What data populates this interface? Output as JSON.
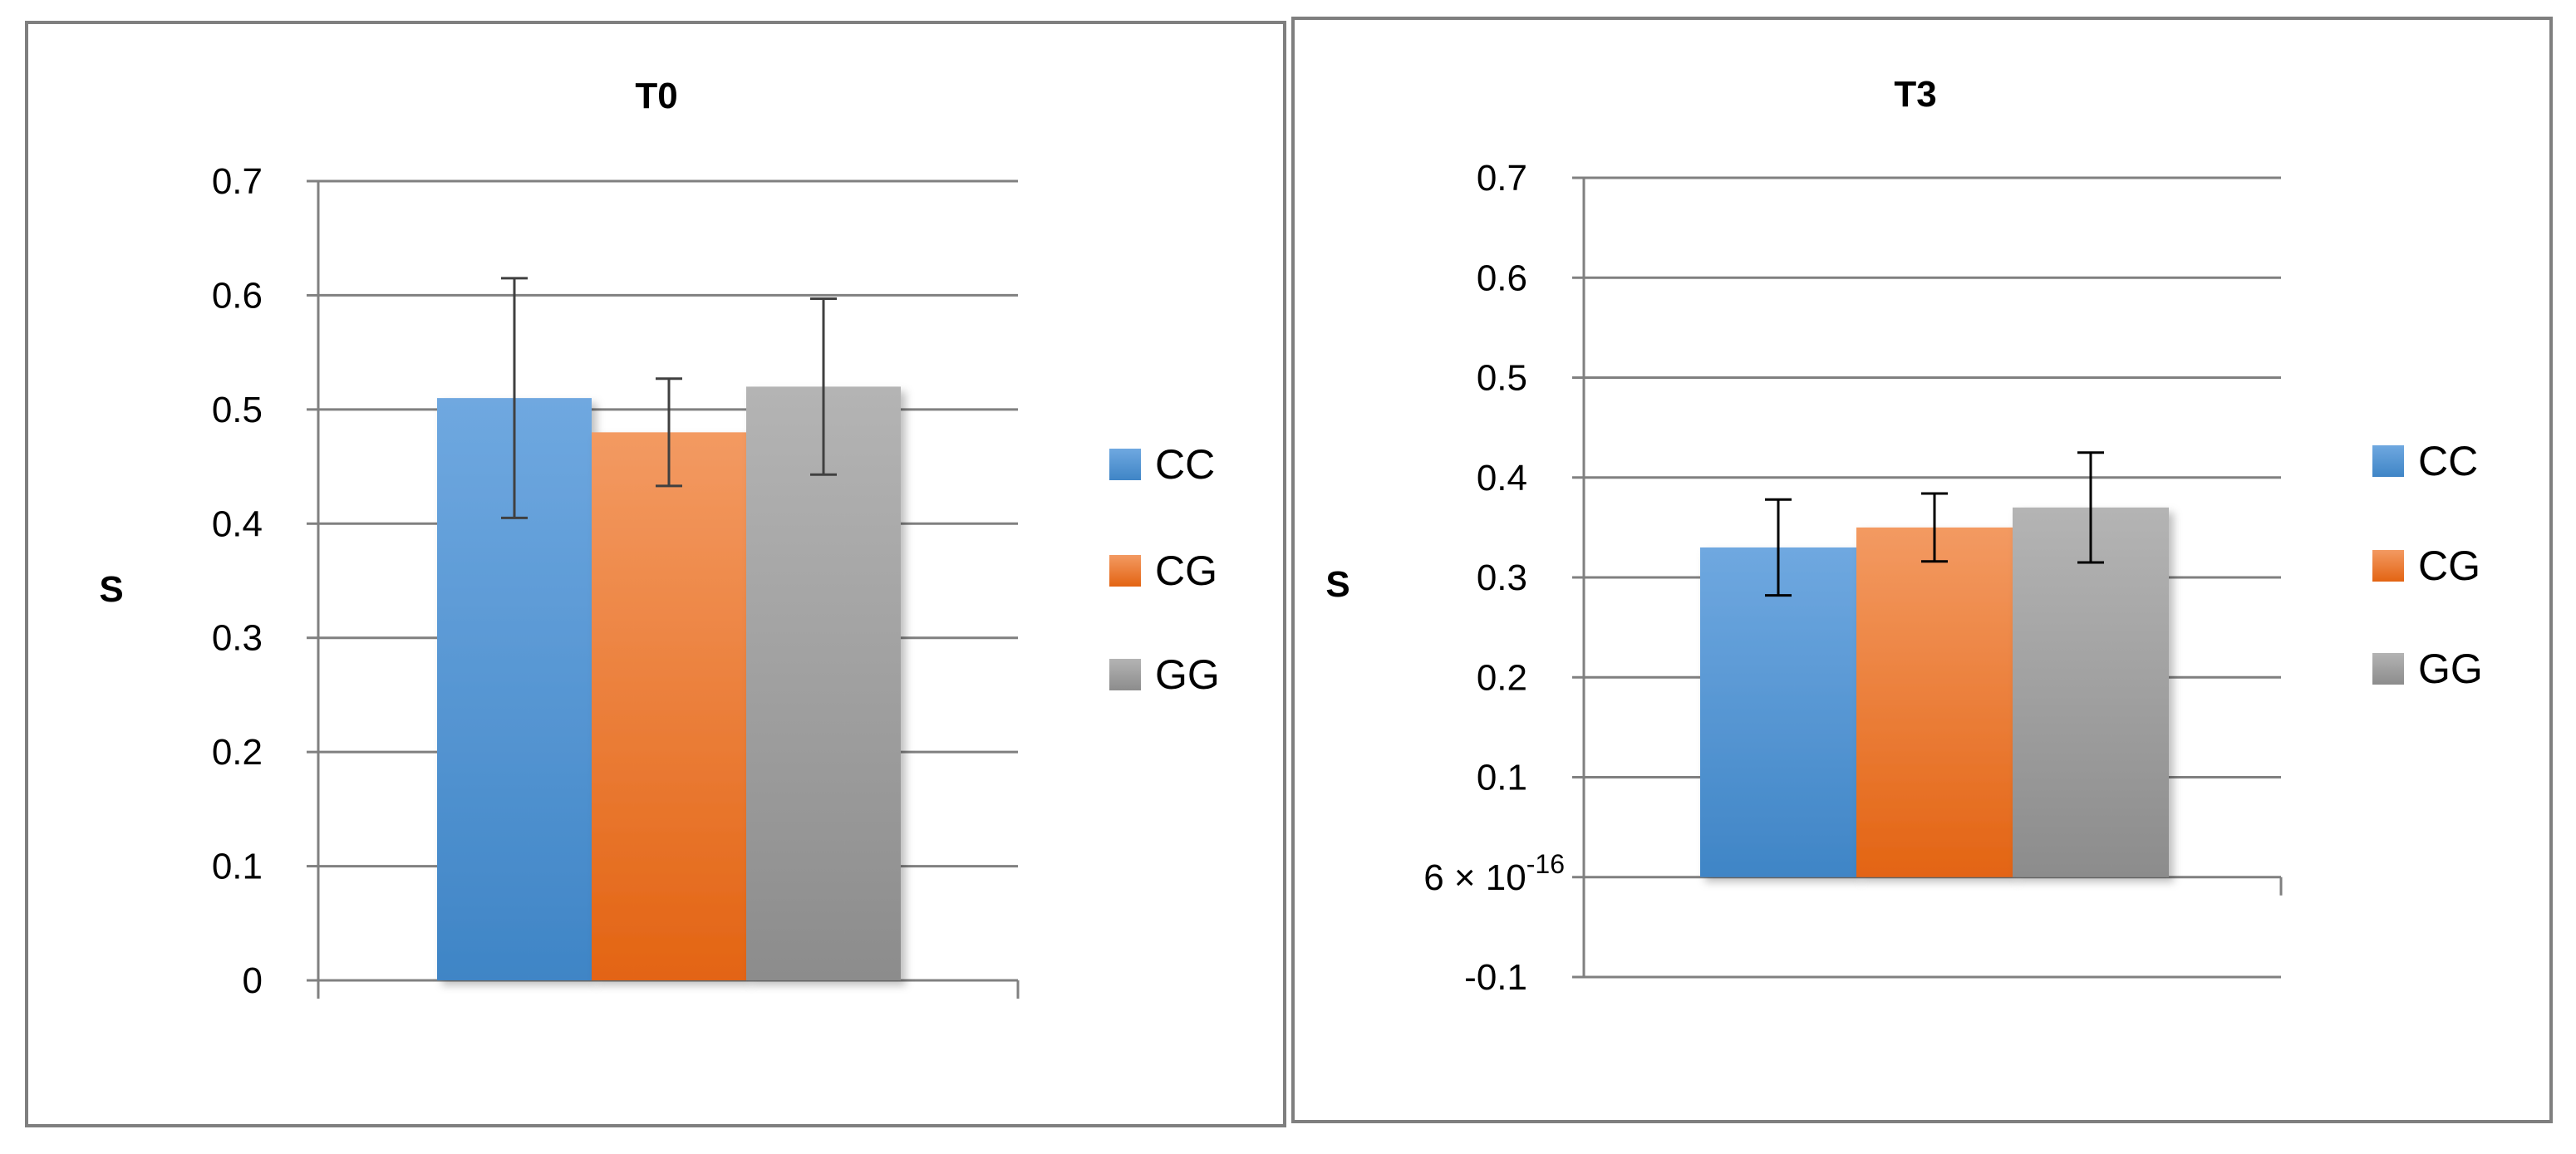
{
  "chart_data": [
    {
      "type": "bar",
      "title": "T0",
      "ylabel": "S",
      "xlabel": "",
      "ylim": [
        0,
        0.7
      ],
      "y_ticks": [
        "0",
        "0.1",
        "0.2",
        "0.3",
        "0.4",
        "0.5",
        "0.6",
        "0.7"
      ],
      "y_tick_values": [
        0,
        0.1,
        0.2,
        0.3,
        0.4,
        0.5,
        0.6,
        0.7
      ],
      "series": [
        {
          "name": "CC",
          "values": [
            0.51
          ],
          "error": [
            0.105
          ]
        },
        {
          "name": "CG",
          "values": [
            0.48
          ],
          "error": [
            0.047
          ]
        },
        {
          "name": "GG",
          "values": [
            0.52
          ],
          "error": [
            0.077
          ]
        }
      ],
      "legend": [
        "CC",
        "CG",
        "GG"
      ],
      "legend_position": "right",
      "grid": true
    },
    {
      "type": "bar",
      "title": "T3",
      "ylabel": "S",
      "xlabel": "",
      "ylim": [
        -0.1,
        0.7
      ],
      "y_ticks": [
        "-0.1",
        "6 × 10",
        "0.1",
        "0.2",
        "0.3",
        "0.4",
        "0.5",
        "0.6",
        "0.7"
      ],
      "y_tick_values": [
        -0.1,
        0,
        0.1,
        0.2,
        0.3,
        0.4,
        0.5,
        0.6,
        0.7
      ],
      "zero_tick_exponent": "-16",
      "series": [
        {
          "name": "CC",
          "values": [
            0.33
          ],
          "error": [
            0.048
          ]
        },
        {
          "name": "CG",
          "values": [
            0.35
          ],
          "error": [
            0.034
          ]
        },
        {
          "name": "GG",
          "values": [
            0.37
          ],
          "error": [
            0.055
          ]
        }
      ],
      "legend": [
        "CC",
        "CG",
        "GG"
      ],
      "legend_position": "right",
      "grid": true
    }
  ],
  "colors": {
    "CC_top": "#6fa8e0",
    "CC_bottom": "#3f85c6",
    "CG_top": "#f39a62",
    "CG_bottom": "#e36413",
    "GG_top": "#b4b4b4",
    "GG_bottom": "#8c8c8c"
  }
}
